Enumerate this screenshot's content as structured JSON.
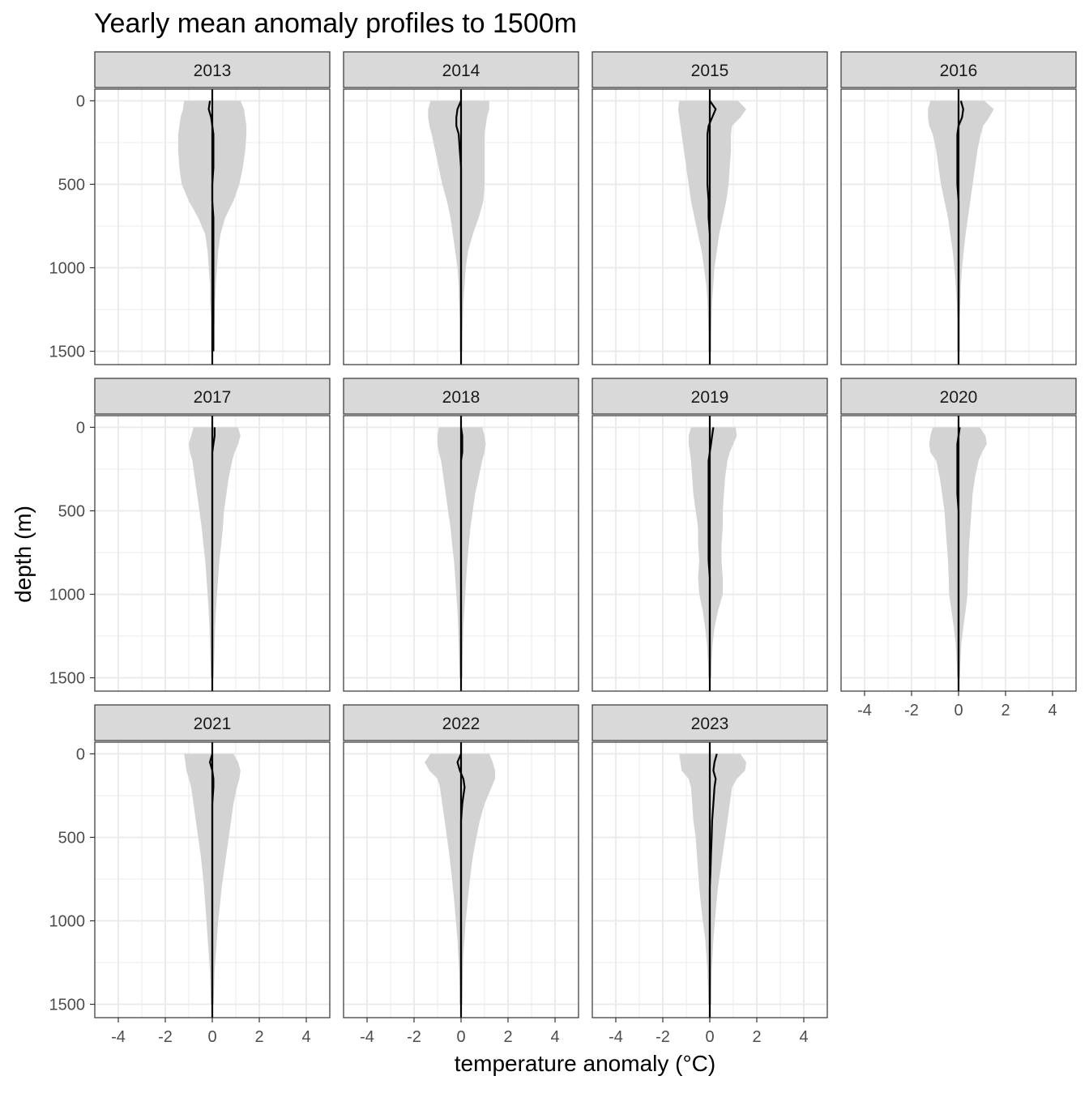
{
  "chart_data": {
    "type": "area",
    "title": "Yearly mean anomaly profiles to 1500m",
    "xlabel": "temperature anomaly (°C)",
    "ylabel": "depth (m)",
    "xlim": [
      -5,
      5
    ],
    "ylim": [
      1580,
      -70
    ],
    "y_reversed": true,
    "x_ticks": [
      "-4",
      "-2",
      "0",
      "2",
      "4"
    ],
    "y_ticks": [
      "0",
      "500",
      "1000",
      "1500"
    ],
    "grid": true,
    "facet_columns": 4,
    "depths": [
      0,
      50,
      100,
      150,
      200,
      300,
      400,
      500,
      600,
      700,
      800,
      900,
      1000,
      1100,
      1200,
      1300,
      1400,
      1500
    ],
    "colors": {
      "ribbon": "#d3d3d3",
      "line": "#000000",
      "strip_fill": "#d9d9d9",
      "strip_border": "#333333",
      "grid": "#ebebeb",
      "panel_border": "#333333"
    },
    "panels": [
      {
        "year": "2013",
        "mean": [
          -0.1,
          -0.15,
          -0.05,
          0.0,
          0.05,
          0.05,
          0.05,
          0.0,
          0.0,
          0.05,
          0.05,
          0.05,
          0.05,
          0.05,
          0.05,
          0.05,
          0.05,
          0.05
        ],
        "lower": [
          -1.2,
          -1.25,
          -1.35,
          -1.4,
          -1.45,
          -1.45,
          -1.4,
          -1.3,
          -1.0,
          -0.6,
          -0.3,
          -0.2,
          -0.15,
          -0.1,
          -0.1,
          -0.05,
          -0.05,
          -0.05
        ],
        "upper": [
          1.2,
          1.35,
          1.4,
          1.45,
          1.45,
          1.4,
          1.3,
          1.15,
          0.9,
          0.55,
          0.35,
          0.25,
          0.2,
          0.15,
          0.12,
          0.1,
          0.08,
          0.05
        ]
      },
      {
        "year": "2014",
        "mean": [
          0.0,
          -0.15,
          -0.2,
          -0.2,
          -0.1,
          -0.05,
          0.0,
          0.0,
          0.0,
          0.0,
          0.0,
          0.0,
          0.0,
          0.0,
          0.0,
          0.0,
          0.0,
          0.0
        ],
        "lower": [
          -1.3,
          -1.4,
          -1.4,
          -1.35,
          -1.25,
          -1.1,
          -0.95,
          -0.8,
          -0.6,
          -0.45,
          -0.35,
          -0.25,
          -0.15,
          -0.1,
          -0.08,
          -0.05,
          -0.05,
          -0.05
        ],
        "upper": [
          1.2,
          1.2,
          1.1,
          1.05,
          1.0,
          1.0,
          1.0,
          1.0,
          0.95,
          0.75,
          0.5,
          0.3,
          0.2,
          0.15,
          0.1,
          0.08,
          0.05,
          0.05
        ]
      },
      {
        "year": "2015",
        "mean": [
          0.0,
          0.25,
          0.1,
          -0.05,
          -0.1,
          -0.1,
          -0.1,
          -0.1,
          -0.05,
          -0.05,
          0.0,
          0.0,
          0.0,
          0.0,
          0.0,
          0.0,
          0.0,
          0.0
        ],
        "lower": [
          -1.3,
          -1.35,
          -1.3,
          -1.25,
          -1.2,
          -1.1,
          -1.0,
          -0.9,
          -0.8,
          -0.65,
          -0.5,
          -0.35,
          -0.25,
          -0.15,
          -0.1,
          -0.08,
          -0.05,
          -0.05
        ],
        "upper": [
          1.2,
          1.55,
          1.3,
          0.95,
          0.9,
          0.9,
          0.85,
          0.8,
          0.7,
          0.55,
          0.4,
          0.3,
          0.2,
          0.15,
          0.1,
          0.08,
          0.05,
          0.05
        ]
      },
      {
        "year": "2016",
        "mean": [
          0.1,
          0.2,
          0.15,
          0.0,
          -0.05,
          -0.05,
          -0.05,
          -0.05,
          0.0,
          0.0,
          0.0,
          0.0,
          0.0,
          0.0,
          0.0,
          0.0,
          0.0,
          0.0
        ],
        "lower": [
          -1.2,
          -1.3,
          -1.3,
          -1.25,
          -1.1,
          -0.95,
          -0.85,
          -0.75,
          -0.6,
          -0.45,
          -0.35,
          -0.25,
          -0.18,
          -0.12,
          -0.08,
          -0.05,
          -0.05,
          -0.05
        ],
        "upper": [
          1.1,
          1.5,
          1.3,
          1.05,
          0.95,
          0.8,
          0.7,
          0.6,
          0.5,
          0.4,
          0.3,
          0.22,
          0.15,
          0.1,
          0.08,
          0.05,
          0.05,
          0.05
        ]
      },
      {
        "year": "2017",
        "mean": [
          0.1,
          0.1,
          0.05,
          0.0,
          0.0,
          0.0,
          0.0,
          0.0,
          0.0,
          0.0,
          0.0,
          0.0,
          0.0,
          0.0,
          0.0,
          0.0,
          0.0,
          0.0
        ],
        "lower": [
          -0.8,
          -0.9,
          -1.0,
          -0.95,
          -0.85,
          -0.75,
          -0.65,
          -0.55,
          -0.45,
          -0.38,
          -0.3,
          -0.25,
          -0.2,
          -0.15,
          -0.12,
          -0.1,
          -0.08,
          -0.05
        ],
        "upper": [
          1.1,
          1.2,
          1.1,
          0.95,
          0.85,
          0.7,
          0.6,
          0.5,
          0.45,
          0.38,
          0.3,
          0.25,
          0.2,
          0.15,
          0.12,
          0.1,
          0.08,
          0.05
        ]
      },
      {
        "year": "2018",
        "mean": [
          0.0,
          0.05,
          0.05,
          0.05,
          0.0,
          0.0,
          0.0,
          0.0,
          0.0,
          0.0,
          0.0,
          0.0,
          0.0,
          0.0,
          0.0,
          0.0,
          0.0,
          0.0
        ],
        "lower": [
          -0.95,
          -1.0,
          -1.0,
          -0.95,
          -0.85,
          -0.75,
          -0.65,
          -0.55,
          -0.45,
          -0.38,
          -0.3,
          -0.25,
          -0.2,
          -0.15,
          -0.12,
          -0.1,
          -0.08,
          -0.05
        ],
        "upper": [
          0.9,
          1.0,
          1.05,
          1.0,
          0.9,
          0.75,
          0.6,
          0.5,
          0.4,
          0.33,
          0.27,
          0.22,
          0.18,
          0.14,
          0.1,
          0.08,
          0.06,
          0.05
        ]
      },
      {
        "year": "2019",
        "mean": [
          0.15,
          0.1,
          0.05,
          0.0,
          -0.05,
          -0.05,
          -0.05,
          -0.05,
          -0.05,
          -0.05,
          -0.05,
          0.0,
          0.0,
          0.0,
          0.0,
          0.0,
          0.0,
          0.0
        ],
        "lower": [
          -0.8,
          -0.9,
          -0.9,
          -0.85,
          -0.8,
          -0.75,
          -0.7,
          -0.6,
          -0.5,
          -0.5,
          -0.45,
          -0.5,
          -0.45,
          -0.3,
          -0.2,
          -0.12,
          -0.08,
          -0.05
        ],
        "upper": [
          1.1,
          1.15,
          1.0,
          0.85,
          0.75,
          0.65,
          0.6,
          0.55,
          0.55,
          0.5,
          0.5,
          0.55,
          0.55,
          0.35,
          0.2,
          0.12,
          0.08,
          0.05
        ]
      },
      {
        "year": "2020",
        "mean": [
          0.05,
          0.0,
          -0.05,
          -0.05,
          -0.05,
          -0.05,
          -0.05,
          0.0,
          0.0,
          0.0,
          0.0,
          0.0,
          0.0,
          0.0,
          0.0,
          0.0,
          0.0,
          0.0
        ],
        "lower": [
          -1.1,
          -1.2,
          -1.25,
          -1.2,
          -0.95,
          -0.8,
          -0.7,
          -0.6,
          -0.55,
          -0.5,
          -0.45,
          -0.42,
          -0.4,
          -0.3,
          -0.2,
          -0.12,
          -0.08,
          -0.05
        ],
        "upper": [
          0.9,
          1.15,
          1.2,
          1.0,
          0.85,
          0.7,
          0.6,
          0.55,
          0.5,
          0.45,
          0.42,
          0.4,
          0.38,
          0.3,
          0.2,
          0.12,
          0.08,
          0.05
        ]
      },
      {
        "year": "2021",
        "mean": [
          0.0,
          -0.1,
          0.0,
          0.05,
          0.05,
          0.0,
          0.0,
          0.0,
          0.0,
          0.0,
          0.0,
          0.0,
          0.0,
          0.0,
          0.0,
          0.0,
          0.0,
          0.0
        ],
        "lower": [
          -1.2,
          -1.15,
          -1.1,
          -1.0,
          -0.9,
          -0.8,
          -0.7,
          -0.6,
          -0.5,
          -0.42,
          -0.35,
          -0.3,
          -0.25,
          -0.2,
          -0.15,
          -0.1,
          -0.08,
          -0.05
        ],
        "upper": [
          0.9,
          1.1,
          1.2,
          1.15,
          1.05,
          0.9,
          0.8,
          0.7,
          0.6,
          0.5,
          0.4,
          0.33,
          0.25,
          0.2,
          0.15,
          0.1,
          0.08,
          0.05
        ]
      },
      {
        "year": "2022",
        "mean": [
          0.0,
          -0.15,
          -0.05,
          0.1,
          0.15,
          0.05,
          0.0,
          0.0,
          0.0,
          0.0,
          0.0,
          0.0,
          0.0,
          0.0,
          0.0,
          0.0,
          0.0,
          0.0
        ],
        "lower": [
          -1.3,
          -1.55,
          -1.35,
          -1.0,
          -0.9,
          -0.8,
          -0.7,
          -0.6,
          -0.5,
          -0.42,
          -0.35,
          -0.28,
          -0.22,
          -0.16,
          -0.12,
          -0.08,
          -0.06,
          -0.05
        ],
        "upper": [
          1.2,
          1.35,
          1.45,
          1.45,
          1.3,
          1.0,
          0.8,
          0.65,
          0.52,
          0.42,
          0.34,
          0.27,
          0.2,
          0.15,
          0.1,
          0.08,
          0.06,
          0.05
        ]
      },
      {
        "year": "2023",
        "mean": [
          0.3,
          0.2,
          0.15,
          0.25,
          0.2,
          0.15,
          0.1,
          0.08,
          0.05,
          0.03,
          0.0,
          0.0,
          0.0,
          0.0,
          0.0,
          0.0,
          0.0,
          0.0
        ],
        "lower": [
          -1.3,
          -1.25,
          -1.2,
          -0.9,
          -0.8,
          -0.75,
          -0.7,
          -0.6,
          -0.55,
          -0.5,
          -0.45,
          -0.38,
          -0.3,
          -0.2,
          -0.15,
          -0.1,
          -0.08,
          -0.05
        ],
        "upper": [
          1.3,
          1.55,
          1.5,
          1.15,
          0.95,
          0.85,
          0.75,
          0.65,
          0.55,
          0.45,
          0.35,
          0.28,
          0.22,
          0.16,
          0.12,
          0.08,
          0.06,
          0.05
        ]
      }
    ]
  }
}
